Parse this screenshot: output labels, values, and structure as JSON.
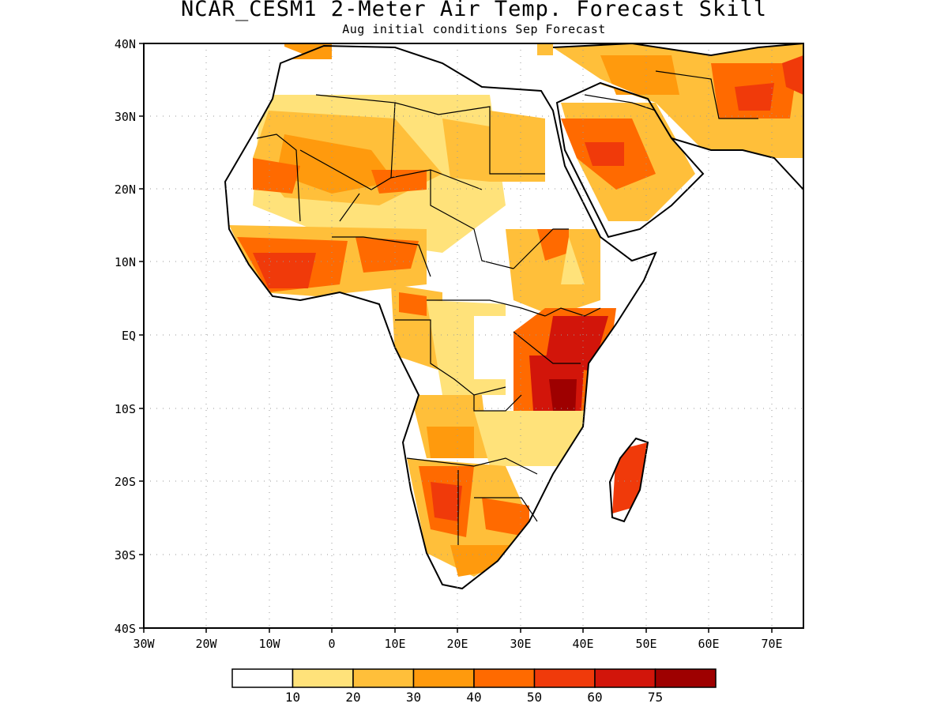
{
  "map": {
    "title": "NCAR_CESM1 2-Meter Air Temp. Forecast Skill",
    "subtitle": "Aug initial conditions  Sep Forecast",
    "lat_labels": [
      "40N",
      "30N",
      "20N",
      "10N",
      "EQ",
      "10S",
      "20S",
      "30S",
      "40S"
    ],
    "lon_labels": [
      "30W",
      "20W",
      "10W",
      "0",
      "10E",
      "20E",
      "30E",
      "40E",
      "50E",
      "60E",
      "70E"
    ],
    "lat_range": [
      -40,
      40
    ],
    "lon_range": [
      -30,
      75
    ],
    "gridlines": "dotted"
  },
  "colorbar": {
    "colors": [
      "#ffffff",
      "#ffe27a",
      "#ffbf3a",
      "#ff9a0d",
      "#ff6a00",
      "#f03a0a",
      "#d2150a",
      "#9e0000"
    ],
    "labels": [
      "10",
      "20",
      "30",
      "40",
      "50",
      "60",
      "75"
    ]
  },
  "skill_regions": [
    {
      "region": "Arabian Peninsula",
      "level": 5
    },
    {
      "region": "Sahara / Algeria-Mali",
      "level": 5
    },
    {
      "region": "West Africa coast",
      "level": 6
    },
    {
      "region": "Kenya-Tanzania",
      "level": 7
    },
    {
      "region": "Namibia-Botswana",
      "level": 5
    },
    {
      "region": "Madagascar",
      "level": 5
    },
    {
      "region": "Afghanistan",
      "level": 5
    }
  ]
}
